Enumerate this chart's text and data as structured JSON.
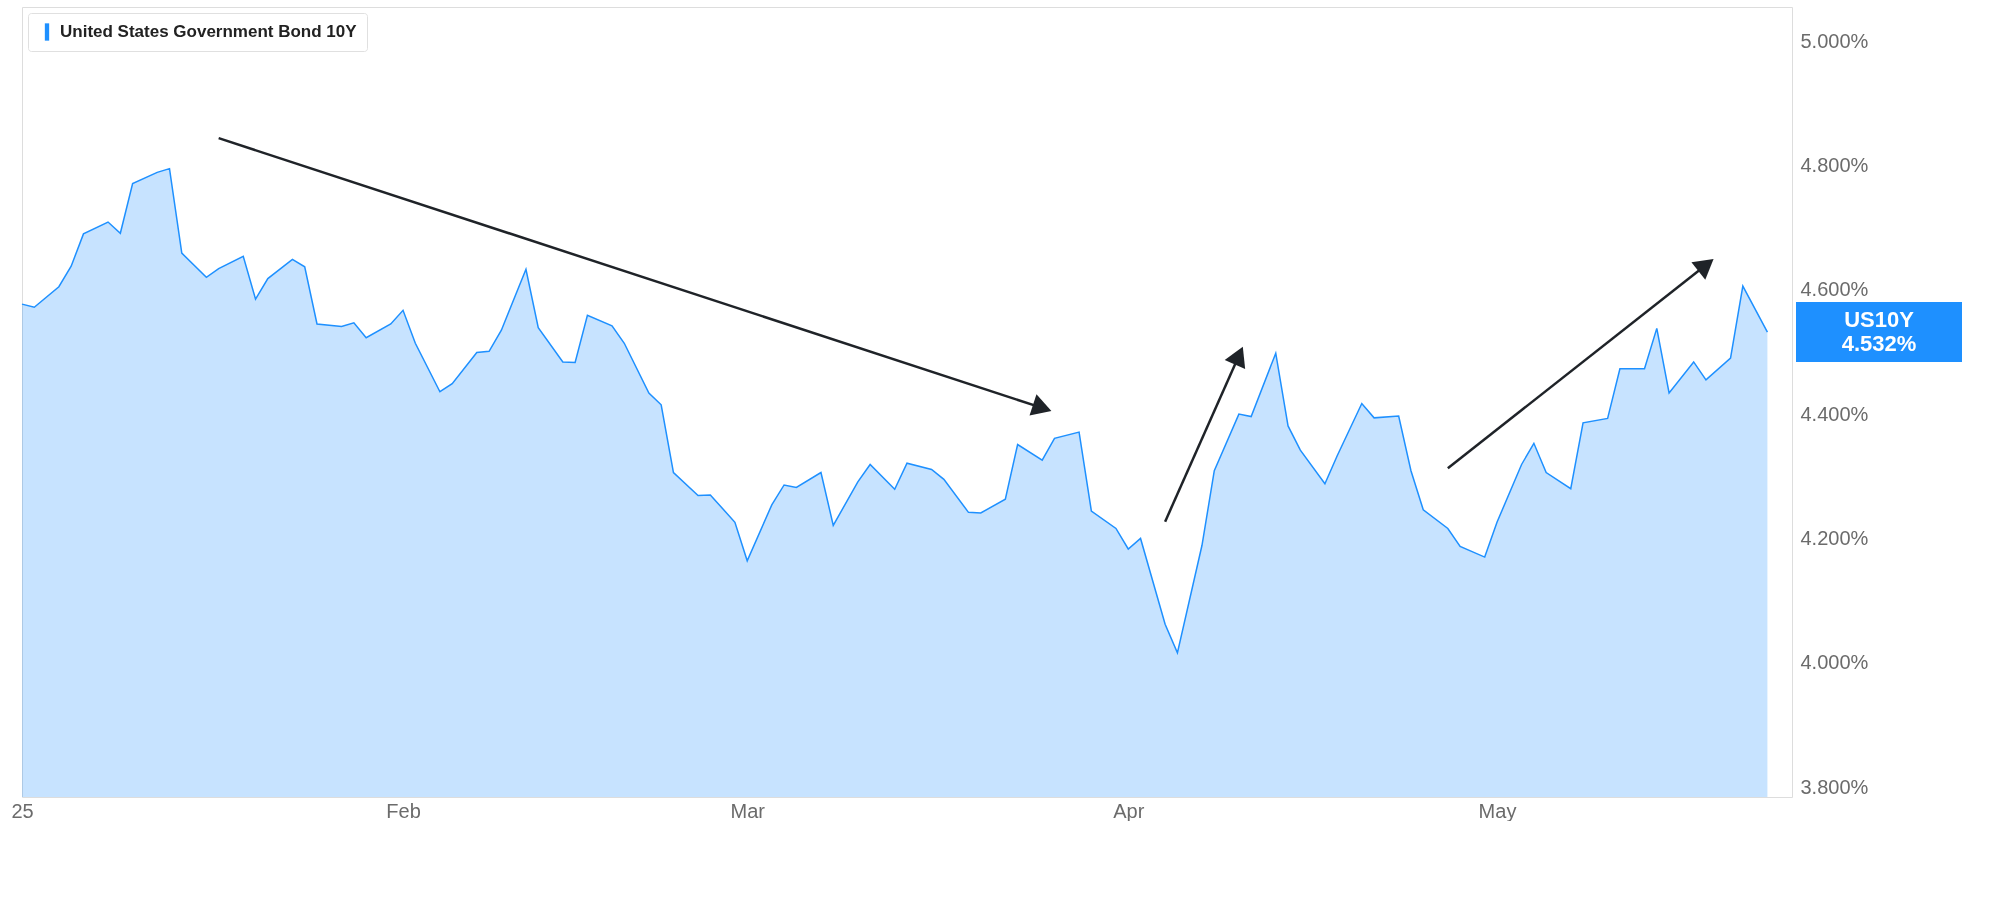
{
  "chart_data": {
    "type": "area",
    "legend": "top left",
    "grid": false,
    "xlim": [
      "2025-01-01",
      "2025-05-25"
    ],
    "xticks": [
      {
        "value": "2025-01-01",
        "label": "25"
      },
      {
        "value": "2025-02-01",
        "label": "Feb"
      },
      {
        "value": "2025-03-01",
        "label": "Mar"
      },
      {
        "value": "2025-04-01",
        "label": "Apr"
      },
      {
        "value": "2025-05-01",
        "label": "May"
      }
    ],
    "ylim": [
      3.784,
      5.055
    ],
    "yticks": [
      {
        "value": 3.8,
        "label": "3.800%"
      },
      {
        "value": 4.0,
        "label": "4.000%"
      },
      {
        "value": 4.2,
        "label": "4.200%"
      },
      {
        "value": 4.4,
        "label": "4.400%"
      },
      {
        "value": 4.6,
        "label": "4.600%"
      },
      {
        "value": 4.8,
        "label": "4.800%"
      },
      {
        "value": 5.0,
        "label": "5.000%"
      }
    ],
    "annotations": [
      "US10Y\n4.532%"
    ],
    "series": [
      {
        "name": "United States Government Bond 10Y",
        "color": "#1e90ff",
        "x": [
          "2025-01-01",
          "2025-01-02",
          "2025-01-04",
          "2025-01-05",
          "2025-01-06",
          "2025-01-08",
          "2025-01-09",
          "2025-01-10",
          "2025-01-12",
          "2025-01-13",
          "2025-01-14",
          "2025-01-16",
          "2025-01-17",
          "2025-01-19",
          "2025-01-20",
          "2025-01-21",
          "2025-01-23",
          "2025-01-24",
          "2025-01-25",
          "2025-01-27",
          "2025-01-28",
          "2025-01-29",
          "2025-01-31",
          "2025-02-01",
          "2025-02-02",
          "2025-02-04",
          "2025-02-05",
          "2025-02-07",
          "2025-02-08",
          "2025-02-09",
          "2025-02-11",
          "2025-02-12",
          "2025-02-14",
          "2025-02-15",
          "2025-02-16",
          "2025-02-18",
          "2025-02-19",
          "2025-02-21",
          "2025-02-22",
          "2025-02-23",
          "2025-02-25",
          "2025-02-26",
          "2025-02-28",
          "2025-03-01",
          "2025-03-03",
          "2025-03-04",
          "2025-03-05",
          "2025-03-07",
          "2025-03-08",
          "2025-03-10",
          "2025-03-11",
          "2025-03-13",
          "2025-03-14",
          "2025-03-16",
          "2025-03-17",
          "2025-03-19",
          "2025-03-20",
          "2025-03-22",
          "2025-03-23",
          "2025-03-25",
          "2025-03-26",
          "2025-03-28",
          "2025-03-29",
          "2025-03-31",
          "2025-04-01",
          "2025-04-02",
          "2025-04-04",
          "2025-04-05",
          "2025-04-07",
          "2025-04-08",
          "2025-04-10",
          "2025-04-11",
          "2025-04-13",
          "2025-04-14",
          "2025-04-15",
          "2025-04-17",
          "2025-04-18",
          "2025-04-20",
          "2025-04-21",
          "2025-04-23",
          "2025-04-24",
          "2025-04-25",
          "2025-04-27",
          "2025-04-28",
          "2025-04-30",
          "2025-05-01",
          "2025-05-03",
          "2025-05-04",
          "2025-05-05",
          "2025-05-07",
          "2025-05-08",
          "2025-05-10",
          "2025-05-11",
          "2025-05-13",
          "2025-05-14",
          "2025-05-15",
          "2025-05-17",
          "2025-05-18",
          "2025-05-20",
          "2025-05-21",
          "2025-05-23"
        ],
        "values": [
          4.577,
          4.572,
          4.605,
          4.638,
          4.69,
          4.709,
          4.691,
          4.771,
          4.789,
          4.795,
          4.659,
          4.62,
          4.634,
          4.654,
          4.585,
          4.618,
          4.649,
          4.637,
          4.545,
          4.541,
          4.547,
          4.523,
          4.545,
          4.567,
          4.514,
          4.436,
          4.449,
          4.499,
          4.501,
          4.535,
          4.633,
          4.539,
          4.484,
          4.483,
          4.559,
          4.542,
          4.514,
          4.434,
          4.415,
          4.306,
          4.269,
          4.27,
          4.226,
          4.164,
          4.254,
          4.286,
          4.282,
          4.306,
          4.221,
          4.291,
          4.319,
          4.279,
          4.321,
          4.311,
          4.295,
          4.242,
          4.241,
          4.263,
          4.351,
          4.326,
          4.361,
          4.371,
          4.244,
          4.216,
          4.183,
          4.2,
          4.062,
          4.016,
          4.189,
          4.309,
          4.4,
          4.396,
          4.498,
          4.381,
          4.342,
          4.288,
          4.333,
          4.417,
          4.394,
          4.397,
          4.309,
          4.246,
          4.216,
          4.187,
          4.17,
          4.226,
          4.319,
          4.353,
          4.306,
          4.28,
          4.386,
          4.393,
          4.473,
          4.473,
          4.538,
          4.434,
          4.484,
          4.455,
          4.49,
          4.606,
          4.532
        ]
      },
      {
        "type": "line",
        "color": "#1f2328",
        "marker": "triangle",
        "x": [
          "2025-01-17",
          "2025-03-25"
        ],
        "values": [
          4.844,
          4.41
        ]
      },
      {
        "type": "line",
        "color": "#1f2328",
        "marker": "triangle",
        "x": [
          "2025-04-04",
          "2025-04-10"
        ],
        "values": [
          4.227,
          4.494
        ]
      },
      {
        "type": "line",
        "color": "#1f2328",
        "marker": "triangle",
        "x": [
          "2025-04-27",
          "2025-05-18"
        ],
        "values": [
          4.313,
          4.64
        ]
      }
    ]
  }
}
